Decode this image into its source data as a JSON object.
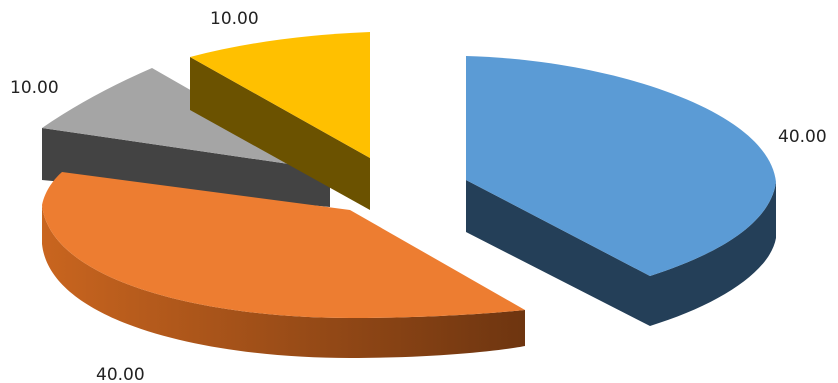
{
  "chart_data": {
    "type": "pie",
    "title": "",
    "categories": [
      "",
      "",
      "",
      ""
    ],
    "values": [
      40,
      40,
      10,
      10
    ],
    "data_labels": [
      "40.00",
      "40.00",
      "10.00",
      "10.00"
    ],
    "colors": [
      "#5b9bd5",
      "#ed7d31",
      "#a5a5a5",
      "#ffc000"
    ],
    "side_colors": [
      "#243f58",
      "#8c4416",
      "#434343",
      "#6b5200"
    ],
    "exploded": true,
    "three_d": true,
    "legend": "none"
  }
}
